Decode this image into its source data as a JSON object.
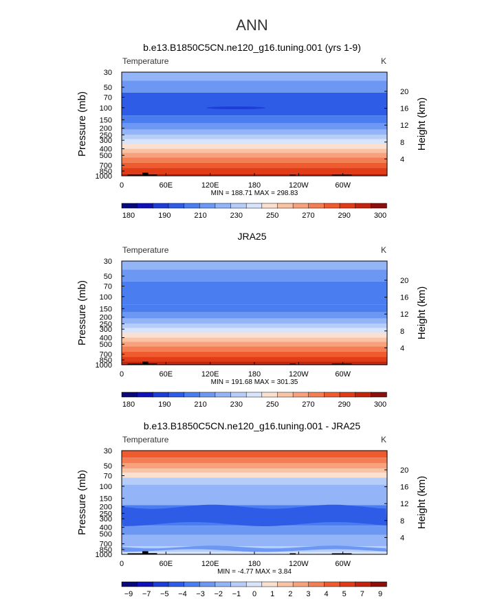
{
  "page_title": "ANN",
  "colors": {
    "temp_palette": [
      "#08087a",
      "#1010b8",
      "#1e3cd6",
      "#2e5ce6",
      "#4a7ef0",
      "#6c98f4",
      "#93b4f7",
      "#b7cdf9",
      "#d8e4fb",
      "#fbe0d0",
      "#f9c3a6",
      "#f7a27c",
      "#f47e53",
      "#ef5a2e",
      "#e23c17",
      "#c3240e",
      "#8b0f0a"
    ],
    "diff_palette": [
      "#08087a",
      "#1010b8",
      "#1e3cd6",
      "#2e5ce6",
      "#4a7ef0",
      "#6c98f4",
      "#93b4f7",
      "#b7cdf9",
      "#d8e4fb",
      "#fbe0d0",
      "#f9c3a6",
      "#f7a27c",
      "#f47e53",
      "#ef5a2e",
      "#e23c17",
      "#c3240e",
      "#8b0f0a"
    ],
    "topography": "#000000"
  },
  "chart_data": [
    {
      "type": "contour",
      "title": "b.e13.B1850C5CN.ne120_g16.tuning.001 (yrs 1-9)",
      "left_label": "Temperature",
      "right_label": "K",
      "ylabel": "Pressure  (mb)",
      "ylabel_right": "Height  (km)",
      "pressure_ticks": [
        "30",
        "50",
        "70",
        "100",
        "150",
        "200",
        "250",
        "300",
        "400",
        "500",
        "700",
        "850",
        "1000"
      ],
      "height_ticks": [
        "4",
        "8",
        "12",
        "16",
        "20"
      ],
      "x_ticks": [
        "0",
        "60E",
        "120E",
        "180",
        "120W",
        "60W"
      ],
      "stats": "MIN = 188.71   MAX = 298.83",
      "colorbar_labels": [
        "180",
        "190",
        "210",
        "230",
        "250",
        "270",
        "290",
        "300"
      ],
      "levels_top_to_bottom": [
        {
          "p": 30,
          "bin": 6
        },
        {
          "p": 40,
          "bin": 5
        },
        {
          "p": 60,
          "bin": 3
        },
        {
          "p": 130,
          "bin": 4
        },
        {
          "p": 170,
          "bin": 5
        },
        {
          "p": 210,
          "bin": 6
        },
        {
          "p": 250,
          "bin": 7
        },
        {
          "p": 290,
          "bin": 8
        },
        {
          "p": 340,
          "bin": 9
        },
        {
          "p": 400,
          "bin": 10
        },
        {
          "p": 460,
          "bin": 11
        },
        {
          "p": 540,
          "bin": 12
        },
        {
          "p": 640,
          "bin": 13
        },
        {
          "p": 760,
          "bin": 14
        },
        {
          "p": 930,
          "bin": 15
        }
      ],
      "cold_patch": {
        "lon": [
          115,
          195
        ],
        "p": [
          97,
          104
        ],
        "bin": 2
      }
    },
    {
      "type": "contour",
      "title": "JRA25",
      "left_label": "Temperature",
      "right_label": "K",
      "ylabel": "Pressure  (mb)",
      "ylabel_right": "Height  (km)",
      "pressure_ticks": [
        "30",
        "50",
        "70",
        "100",
        "150",
        "200",
        "250",
        "300",
        "400",
        "500",
        "700",
        "850",
        "1000"
      ],
      "height_ticks": [
        "4",
        "8",
        "12",
        "16",
        "20"
      ],
      "x_ticks": [
        "0",
        "60E",
        "120E",
        "180",
        "120W",
        "60W"
      ],
      "stats": "MIN = 191.68   MAX = 301.35",
      "colorbar_labels": [
        "180",
        "190",
        "210",
        "230",
        "250",
        "270",
        "290",
        "300"
      ],
      "levels_top_to_bottom": [
        {
          "p": 30,
          "bin": 6
        },
        {
          "p": 40,
          "bin": 5
        },
        {
          "p": 60,
          "bin": 4
        },
        {
          "p": 130,
          "bin": 4
        },
        {
          "p": 170,
          "bin": 5
        },
        {
          "p": 210,
          "bin": 6
        },
        {
          "p": 250,
          "bin": 7
        },
        {
          "p": 290,
          "bin": 8
        },
        {
          "p": 340,
          "bin": 9
        },
        {
          "p": 400,
          "bin": 10
        },
        {
          "p": 460,
          "bin": 11
        },
        {
          "p": 540,
          "bin": 12
        },
        {
          "p": 640,
          "bin": 13
        },
        {
          "p": 760,
          "bin": 14
        },
        {
          "p": 900,
          "bin": 15
        },
        {
          "p": 970,
          "bin": 16
        }
      ],
      "cold_patch": null
    },
    {
      "type": "contour",
      "title": "b.e13.B1850C5CN.ne120_g16.tuning.001 - JRA25",
      "left_label": "Temperature",
      "right_label": "K",
      "ylabel": "Pressure  (mb)",
      "ylabel_right": "Height  (km)",
      "pressure_ticks": [
        "30",
        "50",
        "70",
        "100",
        "150",
        "200",
        "250",
        "300",
        "400",
        "500",
        "700",
        "850",
        "1000"
      ],
      "height_ticks": [
        "4",
        "8",
        "12",
        "16",
        "20"
      ],
      "x_ticks": [
        "0",
        "60E",
        "120E",
        "180",
        "120W",
        "60W"
      ],
      "stats": "MIN =  -4.77   MAX =    3.84",
      "colorbar_labels": [
        "−9",
        "−7",
        "−5",
        "−4",
        "−3",
        "−2",
        "−1",
        "0",
        "1",
        "2",
        "3",
        "4",
        "5",
        "7",
        "9"
      ],
      "levels_top_to_bottom": [
        {
          "p": 30,
          "bin": 13
        },
        {
          "p": 38,
          "bin": 12
        },
        {
          "p": 46,
          "bin": 11
        },
        {
          "p": 55,
          "bin": 10
        },
        {
          "p": 63,
          "bin": 9
        },
        {
          "p": 75,
          "bin": 7
        },
        {
          "p": 95,
          "bin": 6
        },
        {
          "p": 190,
          "bin": 4
        },
        {
          "p": 380,
          "bin": 5
        },
        {
          "p": 520,
          "bin": 6
        },
        {
          "p": 760,
          "bin": 7
        },
        {
          "p": 920,
          "bin": 8
        }
      ],
      "cold_patch": null
    }
  ]
}
